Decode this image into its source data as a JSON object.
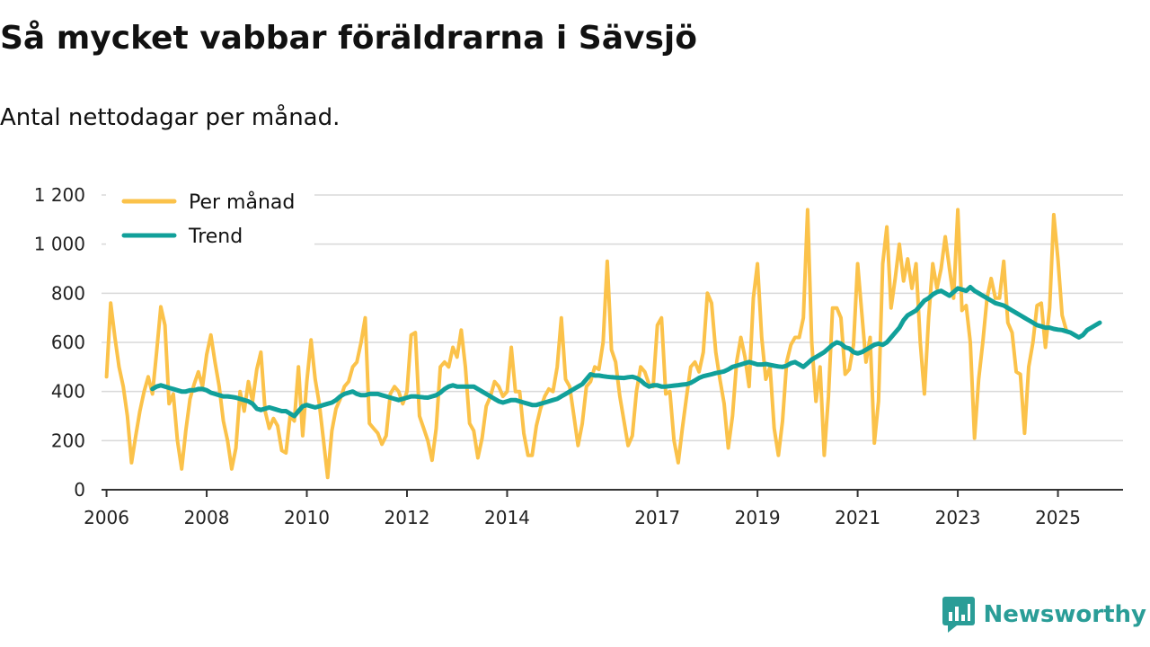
{
  "title": "Så mycket vabbar föräldrarna i Sävsjö",
  "subtitle": "Antal nettodagar per månad.",
  "brand": {
    "name": "Newsworthy",
    "icon": "bar-chart-speech-icon",
    "color": "#2a9d97"
  },
  "colors": {
    "monthly": "#fbc24a",
    "trend": "#11a09a",
    "grid": "#d9d9d9",
    "axis": "#333333"
  },
  "chart_data": {
    "type": "line",
    "title": "Så mycket vabbar föräldrarna i Sävsjö",
    "subtitle": "Antal nettodagar per månad.",
    "xlabel": "",
    "ylabel": "",
    "ylim": [
      0,
      1200
    ],
    "xlim": [
      2005.9,
      2026.3
    ],
    "yticks": [
      {
        "value": 0,
        "label": "0"
      },
      {
        "value": 200,
        "label": "200"
      },
      {
        "value": 400,
        "label": "400"
      },
      {
        "value": 600,
        "label": "600"
      },
      {
        "value": 800,
        "label": "800"
      },
      {
        "value": 1000,
        "label": "1 000"
      },
      {
        "value": 1200,
        "label": "1 200"
      }
    ],
    "xticks": [
      {
        "value": 2006,
        "label": "2006"
      },
      {
        "value": 2008,
        "label": "2008"
      },
      {
        "value": 2010,
        "label": "2010"
      },
      {
        "value": 2012,
        "label": "2012"
      },
      {
        "value": 2014,
        "label": "2014"
      },
      {
        "value": 2017,
        "label": "2017"
      },
      {
        "value": 2019,
        "label": "2019"
      },
      {
        "value": 2021,
        "label": "2021"
      },
      {
        "value": 2023,
        "label": "2023"
      },
      {
        "value": 2025,
        "label": "2025"
      }
    ],
    "grid": true,
    "legend": "top-left",
    "series": [
      {
        "name": "Per månad",
        "start": 2006.0,
        "step": 0.0833333,
        "values": [
          460,
          760,
          620,
          500,
          420,
          300,
          110,
          220,
          320,
          400,
          460,
          390,
          560,
          745,
          670,
          350,
          390,
          200,
          85,
          240,
          370,
          430,
          480,
          420,
          550,
          630,
          520,
          420,
          280,
          200,
          85,
          170,
          400,
          320,
          440,
          360,
          490,
          560,
          320,
          250,
          290,
          260,
          160,
          150,
          300,
          280,
          500,
          220,
          440,
          610,
          450,
          350,
          200,
          50,
          240,
          330,
          370,
          420,
          440,
          500,
          520,
          600,
          700,
          270,
          250,
          230,
          185,
          220,
          390,
          420,
          400,
          350,
          400,
          630,
          640,
          300,
          250,
          200,
          120,
          250,
          500,
          520,
          500,
          580,
          540,
          650,
          500,
          270,
          240,
          130,
          210,
          340,
          380,
          440,
          420,
          380,
          400,
          580,
          400,
          400,
          230,
          140,
          140,
          260,
          330,
          380,
          410,
          400,
          500,
          700,
          450,
          420,
          300,
          180,
          270,
          420,
          440,
          500,
          490,
          600,
          930,
          570,
          520,
          380,
          280,
          180,
          220,
          400,
          500,
          480,
          430,
          420,
          670,
          700,
          390,
          400,
          200,
          110,
          250,
          380,
          500,
          520,
          480,
          560,
          800,
          760,
          560,
          450,
          350,
          170,
          300,
          520,
          620,
          540,
          420,
          780,
          920,
          620,
          450,
          500,
          250,
          140,
          280,
          520,
          590,
          620,
          620,
          700,
          1140,
          600,
          360,
          500,
          140,
          380,
          740,
          740,
          700,
          470,
          490,
          590,
          920,
          720,
          520,
          620,
          190,
          360,
          920,
          1070,
          740,
          860,
          1000,
          850,
          940,
          820,
          920,
          600,
          390,
          700,
          920,
          820,
          900,
          1030,
          900,
          780,
          1140,
          730,
          750,
          600,
          210,
          450,
          600,
          780,
          860,
          780,
          780,
          930,
          680,
          640,
          480,
          470,
          230,
          500,
          600,
          750,
          760,
          580,
          740,
          1120,
          940,
          710,
          650
        ]
      },
      {
        "name": "Trend",
        "start": 2006.9167,
        "step": 0.0833333,
        "values": [
          410,
          420,
          425,
          420,
          415,
          410,
          405,
          400,
          400,
          405,
          405,
          410,
          410,
          405,
          395,
          390,
          385,
          380,
          380,
          378,
          375,
          370,
          365,
          360,
          350,
          330,
          325,
          330,
          335,
          330,
          325,
          320,
          320,
          310,
          300,
          320,
          340,
          345,
          340,
          335,
          340,
          345,
          350,
          355,
          365,
          380,
          390,
          395,
          400,
          390,
          385,
          385,
          390,
          390,
          390,
          385,
          380,
          375,
          370,
          365,
          370,
          375,
          380,
          380,
          378,
          376,
          375,
          380,
          385,
          395,
          410,
          420,
          425,
          420,
          420,
          420,
          420,
          420,
          410,
          400,
          390,
          380,
          370,
          360,
          355,
          360,
          365,
          365,
          360,
          355,
          350,
          345,
          345,
          350,
          355,
          360,
          365,
          370,
          380,
          390,
          400,
          410,
          420,
          430,
          450,
          470,
          465,
          465,
          462,
          460,
          458,
          457,
          456,
          455,
          458,
          460,
          455,
          445,
          430,
          420,
          425,
          425,
          420,
          420,
          422,
          424,
          426,
          428,
          430,
          435,
          445,
          455,
          462,
          466,
          470,
          475,
          478,
          482,
          490,
          500,
          505,
          510,
          515,
          520,
          515,
          510,
          510,
          512,
          508,
          505,
          502,
          500,
          505,
          515,
          520,
          510,
          500,
          515,
          530,
          540,
          550,
          560,
          575,
          590,
          600,
          595,
          580,
          575,
          560,
          555,
          560,
          570,
          580,
          590,
          595,
          590,
          600,
          620,
          640,
          660,
          690,
          710,
          720,
          730,
          750,
          770,
          780,
          795,
          805,
          810,
          800,
          790,
          805,
          820,
          815,
          810,
          825,
          810,
          800,
          790,
          780,
          770,
          760,
          755,
          750,
          740,
          730,
          720,
          710,
          700,
          690,
          680,
          670,
          665,
          660,
          660,
          655,
          652,
          650,
          645,
          640,
          630,
          620,
          630,
          650,
          660,
          670,
          680
        ]
      }
    ]
  }
}
